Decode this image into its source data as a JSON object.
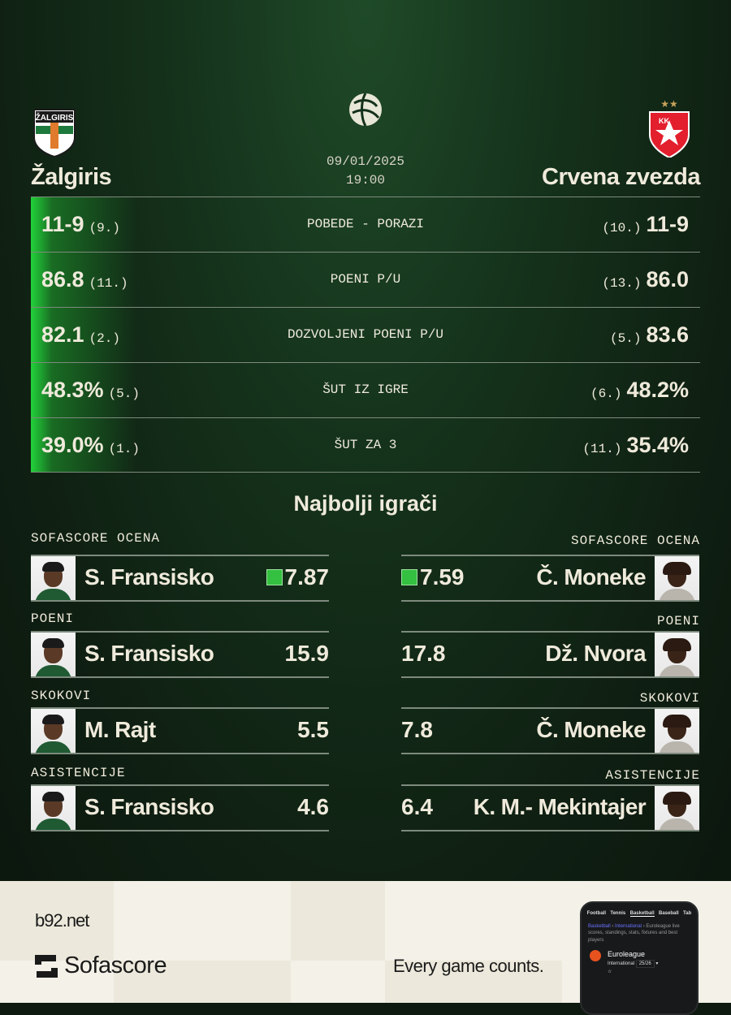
{
  "match": {
    "date": "09/01/2025",
    "time": "19:00",
    "competition_logo": "euroleague-logo",
    "home": {
      "name": "Žalgiris",
      "logo": "zalgiris-crest"
    },
    "away": {
      "name": "Crvena zvezda",
      "logo": "crvena-zvezda-crest"
    }
  },
  "stats": [
    {
      "label": "POBEDE - PORAZI",
      "home": "11-9",
      "home_rank": "(9.)",
      "away": "11-9",
      "away_rank": "(10.)"
    },
    {
      "label": "POENI P/U",
      "home": "86.8",
      "home_rank": "(11.)",
      "away": "86.0",
      "away_rank": "(13.)"
    },
    {
      "label": "DOZVOLJENI POENI P/U",
      "home": "82.1",
      "home_rank": "(2.)",
      "away": "83.6",
      "away_rank": "(5.)"
    },
    {
      "label": "ŠUT IZ IGRE",
      "home": "48.3%",
      "home_rank": "(5.)",
      "away": "48.2%",
      "away_rank": "(6.)"
    },
    {
      "label": "ŠUT ZA 3",
      "home": "39.0%",
      "home_rank": "(1.)",
      "away": "35.4%",
      "away_rank": "(11.)"
    }
  ],
  "top_players": {
    "title": "Najbolji igrači",
    "categories": [
      {
        "label": "SOFASCORE OCENA",
        "home": {
          "name": "S. Fransisko",
          "value": "7.87"
        },
        "away": {
          "name": "Č. Moneke",
          "value": "7.59"
        },
        "rating_color": "#34c040"
      },
      {
        "label": "POENI",
        "home": {
          "name": "S. Fransisko",
          "value": "15.9"
        },
        "away": {
          "name": "Dž. Nvora",
          "value": "17.8"
        }
      },
      {
        "label": "SKOKOVI",
        "home": {
          "name": "M. Rajt",
          "value": "5.5"
        },
        "away": {
          "name": "Č. Moneke",
          "value": "7.8"
        }
      },
      {
        "label": "ASISTENCIJE",
        "home": {
          "name": "S. Fransisko",
          "value": "4.6"
        },
        "away": {
          "name": "K. M.- Mekintajer",
          "value": "6.4"
        }
      }
    ]
  },
  "footer": {
    "site": "b92.net",
    "brand": "Sofascore",
    "tagline": "Every game counts.",
    "phone": {
      "tabs": [
        "Football",
        "Tennis",
        "Basketball",
        "Baseball",
        "Tab"
      ],
      "breadcrumb_1": "Basketball",
      "breadcrumb_2": "International",
      "breadcrumb_rest": "Euroleague live scores, standings, stats, fixtures and best players",
      "league": "Euroleague",
      "country": "International",
      "season": "25/26"
    }
  }
}
